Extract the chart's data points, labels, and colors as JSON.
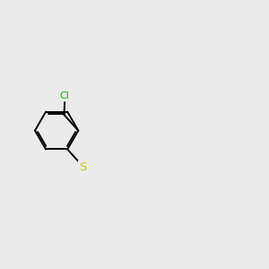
{
  "background_color": "#ebebeb",
  "bond_color": "#000000",
  "S_color": "#cccc00",
  "N_color": "#0000ff",
  "O_color": "#ff0000",
  "Cl_color": "#00bb00",
  "font_size": 8.5,
  "line_width": 1.4,
  "figsize": [
    3.0,
    3.0
  ],
  "dpi": 100
}
